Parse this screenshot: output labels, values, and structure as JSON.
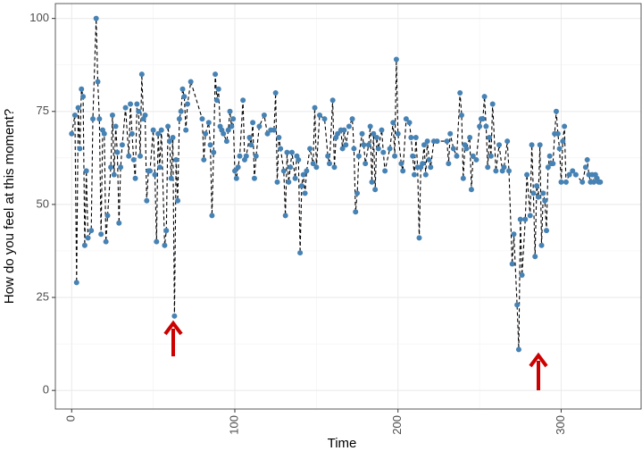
{
  "chart_data": {
    "type": "line",
    "x_label": "Time",
    "y_label": "How do you feel at this moment?",
    "x": [
      0,
      2,
      3,
      4,
      5,
      6,
      7,
      8,
      9,
      10,
      12,
      13,
      15,
      16,
      17,
      18,
      19,
      20,
      21,
      22,
      24,
      25,
      26,
      27,
      28,
      29,
      30,
      31,
      33,
      35,
      36,
      37,
      38,
      39,
      40,
      41,
      42,
      43,
      44,
      45,
      46,
      47,
      48,
      50,
      51,
      52,
      53,
      54,
      55,
      57,
      58,
      59,
      60,
      61,
      62,
      63,
      64,
      65,
      66,
      67,
      68,
      69,
      70,
      71,
      73,
      80,
      81,
      82,
      84,
      85,
      86,
      87,
      88,
      89,
      90,
      91,
      92,
      93,
      95,
      96,
      97,
      98,
      99,
      100,
      101,
      102,
      103,
      105,
      106,
      107,
      109,
      110,
      111,
      112,
      113,
      115,
      118,
      120,
      122,
      124,
      125,
      126,
      127,
      128,
      130,
      131,
      132,
      133,
      134,
      135,
      137,
      138,
      139,
      140,
      141,
      142,
      143,
      144,
      146,
      148,
      149,
      150,
      152,
      155,
      157,
      158,
      160,
      161,
      162,
      163,
      165,
      166,
      167,
      168,
      170,
      172,
      173,
      174,
      175,
      176,
      178,
      179,
      180,
      182,
      183,
      184,
      185,
      186,
      187,
      188,
      190,
      191,
      192,
      195,
      197,
      198,
      199,
      200,
      202,
      203,
      205,
      207,
      208,
      209,
      210,
      211,
      212,
      213,
      214,
      215,
      216,
      217,
      218,
      219,
      220,
      222,
      224,
      230,
      231,
      232,
      234,
      236,
      238,
      239,
      240,
      241,
      242,
      244,
      245,
      246,
      248,
      250,
      251,
      252,
      253,
      254,
      255,
      256,
      257,
      258,
      260,
      262,
      264,
      265,
      267,
      268,
      270,
      271,
      273,
      274,
      275,
      276,
      278,
      279,
      281,
      282,
      283,
      284,
      285,
      286,
      287,
      288,
      289,
      290,
      291,
      292,
      293,
      294,
      295,
      296,
      297,
      298,
      299,
      300,
      301,
      302,
      303,
      305,
      307,
      309,
      313,
      315,
      316,
      317,
      318,
      319,
      320,
      321,
      322,
      323,
      324
    ],
    "values": [
      69,
      74,
      29,
      76,
      65,
      81,
      79,
      39,
      59,
      41,
      43,
      73,
      100,
      83,
      73,
      42,
      70,
      69,
      40,
      47,
      60,
      74,
      58,
      71,
      64,
      45,
      60,
      66,
      76,
      63,
      77,
      69,
      62,
      57,
      77,
      75,
      63,
      85,
      73,
      74,
      51,
      59,
      59,
      70,
      58,
      40,
      69,
      60,
      70,
      39,
      43,
      71,
      67,
      57,
      68,
      20,
      62,
      51,
      73,
      75,
      81,
      79,
      70,
      77,
      83,
      73,
      62,
      69,
      72,
      66,
      47,
      64,
      85,
      78,
      81,
      71,
      70,
      69,
      67,
      70,
      75,
      71,
      73,
      59,
      57,
      60,
      63,
      78,
      62,
      63,
      68,
      66,
      72,
      57,
      63,
      71,
      74,
      69,
      70,
      70,
      80,
      56,
      68,
      65,
      59,
      47,
      64,
      56,
      60,
      64,
      57,
      63,
      62,
      37,
      55,
      58,
      53,
      59,
      65,
      61,
      76,
      60,
      74,
      73,
      63,
      61,
      78,
      60,
      68,
      69,
      70,
      65,
      70,
      66,
      71,
      73,
      65,
      48,
      53,
      63,
      69,
      66,
      61,
      66,
      71,
      56,
      69,
      54,
      68,
      65,
      70,
      64,
      59,
      65,
      72,
      63,
      89,
      69,
      61,
      59,
      73,
      72,
      68,
      63,
      58,
      68,
      60,
      41,
      60,
      61,
      66,
      58,
      67,
      62,
      60,
      67,
      67,
      67,
      61,
      69,
      65,
      63,
      80,
      74,
      57,
      66,
      65,
      68,
      54,
      63,
      62,
      71,
      73,
      73,
      79,
      71,
      60,
      68,
      63,
      77,
      59,
      66,
      59,
      60,
      67,
      59,
      34,
      42,
      23,
      11,
      46,
      31,
      46,
      58,
      47,
      66,
      53,
      36,
      55,
      52,
      66,
      39,
      53,
      51,
      43,
      60,
      63,
      61,
      61,
      69,
      75,
      69,
      65,
      56,
      67,
      71,
      56,
      58,
      59,
      58,
      56,
      60,
      62,
      58,
      56,
      58,
      56,
      58,
      57,
      56,
      56
    ],
    "color": "#4682b4",
    "line_color": "#000000",
    "xlim": [
      -10,
      349
    ],
    "ylim": [
      -5,
      104
    ],
    "xticks": [
      0,
      100,
      200,
      300
    ],
    "yticks": [
      0,
      25,
      50,
      75,
      100
    ],
    "grid": true
  }
}
